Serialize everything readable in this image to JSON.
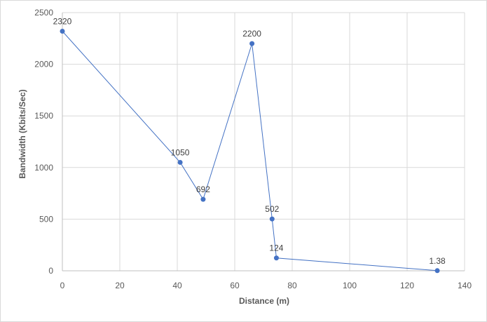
{
  "chart_data": {
    "type": "scatter",
    "x": [
      0,
      41,
      49,
      66,
      73,
      74.5,
      130.5
    ],
    "series": [
      {
        "values": [
          2320,
          1050,
          692,
          2200,
          502,
          124,
          1.38
        ],
        "labels": [
          "2320",
          "1050",
          "692",
          "2200",
          "502",
          "124",
          "1.38"
        ],
        "color": "#4472c4",
        "line": true
      }
    ],
    "xlabel": "Distance (m)",
    "ylabel": "Bandwidth (Kbits/Sec)",
    "xlim": [
      0,
      140
    ],
    "ylim": [
      0,
      2500
    ],
    "xticks": [
      0,
      20,
      40,
      60,
      80,
      100,
      120,
      140
    ],
    "yticks": [
      0,
      500,
      1000,
      1500,
      2000,
      2500
    ],
    "grid": true,
    "legend": "none"
  }
}
